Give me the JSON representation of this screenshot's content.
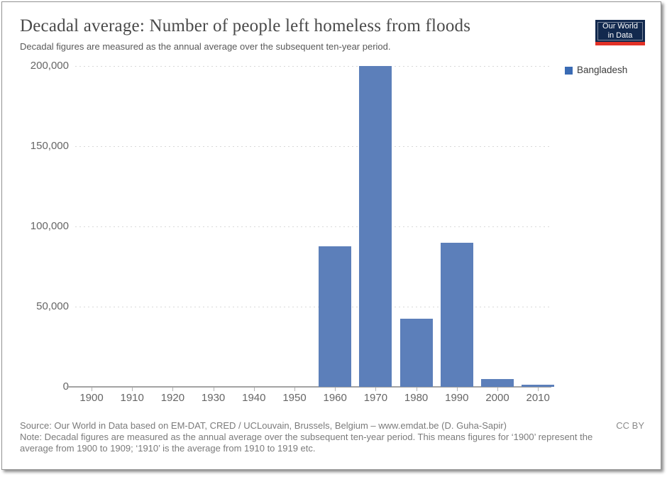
{
  "header": {
    "title": "Decadal average: Number of people left homeless from floods",
    "subtitle": "Decadal figures are measured as the annual average over the subsequent ten-year period.",
    "logo": {
      "line1": "Our World",
      "line2": "in Data",
      "navy": "#12294e",
      "red": "#e23227"
    }
  },
  "legend": {
    "items": [
      {
        "label": "Bangladesh",
        "color": "#3a6bb4"
      }
    ]
  },
  "chart_data": {
    "type": "bar",
    "title": "Decadal average: Number of people left homeless from floods",
    "series_name": "Bangladesh",
    "categories": [
      "1900",
      "1910",
      "1920",
      "1930",
      "1940",
      "1950",
      "1960",
      "1970",
      "1980",
      "1990",
      "2000",
      "2010"
    ],
    "values": [
      0,
      0,
      0,
      0,
      0,
      0,
      87500,
      200000,
      42500,
      90000,
      4800,
      1200
    ],
    "xlabel": "",
    "ylabel": "",
    "ylim": [
      0,
      200000
    ],
    "yticks": [
      0,
      50000,
      100000,
      150000,
      200000
    ],
    "ytick_labels": [
      "0",
      "50,000",
      "100,000",
      "150,000",
      "200,000"
    ],
    "bar_color": "#5c7fba",
    "grid": "horizontal-dotted",
    "legend_position": "top-right"
  },
  "footer": {
    "source": "Source: Our World in Data based on EM-DAT, CRED / UCLouvain, Brussels, Belgium – www.emdat.be (D. Guha-Sapir)",
    "license": "CC BY",
    "note": "Note: Decadal figures are measured as the annual average over the subsequent ten-year period. This means figures for ‘1900’ represent the average from 1900 to 1909; ‘1910’ is the average from 1910 to 1919 etc."
  }
}
